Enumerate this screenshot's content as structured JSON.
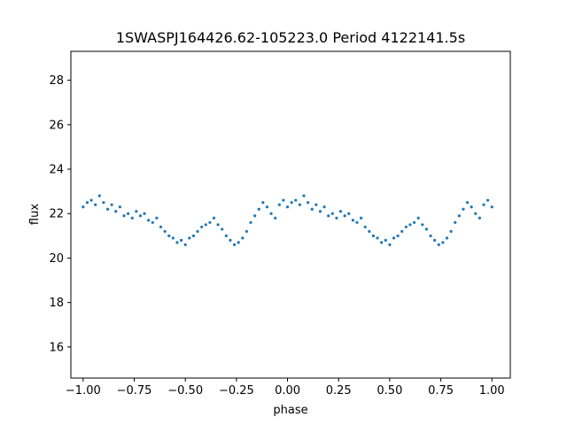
{
  "chart_data": {
    "type": "scatter",
    "title": "1SWASPJ164426.62-105223.0 Period 4122141.5s",
    "xlabel": "phase",
    "ylabel": "flux",
    "xlim": [
      -1.06,
      1.09
    ],
    "ylim": [
      14.6,
      29.3
    ],
    "x_ticks": [
      -1.0,
      -0.75,
      -0.5,
      -0.25,
      0.0,
      0.25,
      0.5,
      0.75,
      1.0
    ],
    "x_tick_labels": [
      "−1.00",
      "−0.75",
      "−0.50",
      "−0.25",
      "0.00",
      "0.25",
      "0.50",
      "0.75",
      "1.00"
    ],
    "y_ticks": [
      16,
      18,
      20,
      22,
      24,
      26,
      28
    ],
    "y_tick_labels": [
      "16",
      "18",
      "20",
      "22",
      "24",
      "26",
      "28"
    ],
    "grid": false,
    "legend": "none",
    "point_color": "#1f77b4",
    "series": [
      {
        "x": [
          -1.0,
          -0.98,
          -0.96,
          -0.94,
          -0.92,
          -0.9,
          -0.88,
          -0.86,
          -0.84,
          -0.82,
          -0.8,
          -0.78,
          -0.76,
          -0.74,
          -0.72,
          -0.7,
          -0.68,
          -0.66,
          -0.64,
          -0.62,
          -0.6,
          -0.58,
          -0.56,
          -0.54,
          -0.52,
          -0.5,
          -0.48,
          -0.46,
          -0.44,
          -0.42,
          -0.4,
          -0.38,
          -0.36,
          -0.34,
          -0.32,
          -0.3,
          -0.28,
          -0.26,
          -0.24,
          -0.22,
          -0.2,
          -0.18,
          -0.16,
          -0.14,
          -0.12,
          -0.1,
          -0.08,
          -0.06,
          -0.04,
          -0.02,
          0.0,
          0.02,
          0.04,
          0.06,
          0.08,
          0.1,
          0.12,
          0.14,
          0.16,
          0.18,
          0.2,
          0.22,
          0.24,
          0.26,
          0.28,
          0.3,
          0.32,
          0.34,
          0.36,
          0.38,
          0.4,
          0.42,
          0.44,
          0.46,
          0.48,
          0.5,
          0.52,
          0.54,
          0.56,
          0.58,
          0.6,
          0.62,
          0.64,
          0.66,
          0.68,
          0.7,
          0.72,
          0.74,
          0.76,
          0.78,
          0.8,
          0.82,
          0.84,
          0.86,
          0.88,
          0.9,
          0.92,
          0.94,
          0.96,
          0.98,
          1.0
        ],
        "y": [
          22.3,
          22.5,
          22.6,
          22.4,
          22.8,
          22.5,
          22.2,
          22.4,
          22.1,
          22.3,
          21.9,
          22.0,
          21.8,
          22.1,
          21.9,
          22.0,
          21.7,
          21.6,
          21.8,
          21.4,
          21.2,
          21.0,
          20.9,
          20.7,
          20.8,
          20.6,
          20.9,
          21.0,
          21.2,
          21.4,
          21.5,
          21.6,
          21.8,
          21.5,
          21.3,
          21.0,
          20.8,
          20.6,
          20.7,
          20.9,
          21.2,
          21.6,
          21.9,
          22.2,
          22.5,
          22.3,
          22.0,
          21.8,
          22.4,
          22.6,
          22.3,
          22.5,
          22.6,
          22.4,
          22.8,
          22.5,
          22.2,
          22.4,
          22.1,
          22.3,
          21.9,
          22.0,
          21.8,
          22.1,
          21.9,
          22.0,
          21.7,
          21.6,
          21.8,
          21.4,
          21.2,
          21.0,
          20.9,
          20.7,
          20.8,
          20.6,
          20.9,
          21.0,
          21.2,
          21.4,
          21.5,
          21.6,
          21.8,
          21.5,
          21.3,
          21.0,
          20.8,
          20.6,
          20.7,
          20.9,
          21.2,
          21.6,
          21.9,
          22.2,
          22.5,
          22.3,
          22.0,
          21.8,
          22.4,
          22.6,
          22.3
        ]
      }
    ]
  }
}
